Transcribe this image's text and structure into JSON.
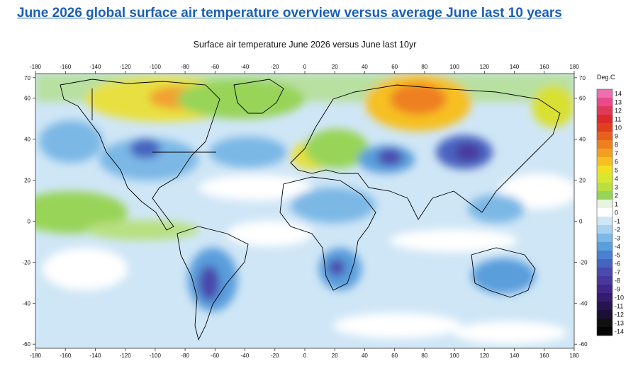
{
  "page_title": "June 2026 global surface air temperature overview versus average June last 10 years",
  "map_title": "Surface air temperature June 2026 versus June last 10yr",
  "x_ticks": [
    "-180",
    "-160",
    "-140",
    "-120",
    "-100",
    "-80",
    "-60",
    "-40",
    "-20",
    "0",
    "20",
    "40",
    "60",
    "80",
    "100",
    "120",
    "140",
    "160",
    "180"
  ],
  "y_ticks": [
    "70",
    "60",
    "40",
    "20",
    "0",
    "-20",
    "-40",
    "-60"
  ],
  "colorbar": {
    "title": "Deg.C",
    "labels": [
      "14",
      "13",
      "12",
      "11",
      "10",
      "9",
      "8",
      "7",
      "6",
      "5",
      "4",
      "3",
      "2",
      "1",
      "0",
      "-1",
      "-2",
      "-3",
      "-4",
      "-5",
      "-6",
      "-7",
      "-8",
      "-9",
      "-10",
      "-11",
      "-12",
      "-13",
      "-14"
    ],
    "colors": [
      "#ee6fb0",
      "#e84a8a",
      "#e03a5a",
      "#dc2a2a",
      "#e04020",
      "#e86020",
      "#ee8020",
      "#f2a020",
      "#f6c020",
      "#f2e020",
      "#d8e830",
      "#b8e040",
      "#98d458",
      "#e8f4e0",
      "#ffffff",
      "#cfe6f6",
      "#a8d2f0",
      "#7cb8e6",
      "#5a9edc",
      "#4a80d0",
      "#4464c0",
      "#4a4aae",
      "#48389c",
      "#402888",
      "#341c70",
      "#26144f",
      "#1a0f36",
      "#101010",
      "#050505"
    ]
  },
  "anomaly_regions": [
    {
      "name": "northern canada warm",
      "lon": -100,
      "lat": 67,
      "value": 4
    },
    {
      "name": "hudson bay warm",
      "lon": -93,
      "lat": 65,
      "value": 6
    },
    {
      "name": "western siberia warm",
      "lon": 75,
      "lat": 64,
      "value": 7
    },
    {
      "name": "central europe warm",
      "lon": 5,
      "lat": 47,
      "value": 4
    },
    {
      "name": "central asia cold",
      "lon": 55,
      "lat": 45,
      "value": -4
    },
    {
      "name": "mongolia cold",
      "lon": 110,
      "lat": 48,
      "value": -6
    },
    {
      "name": "north america cold",
      "lon": -100,
      "lat": 45,
      "value": -3
    },
    {
      "name": "south america cold",
      "lon": -60,
      "lat": -27,
      "value": -4
    },
    {
      "name": "southern africa cold",
      "lon": 25,
      "lat": -22,
      "value": -4
    },
    {
      "name": "australia cold",
      "lon": 130,
      "lat": -25,
      "value": -3
    },
    {
      "name": "pacific tropical warm",
      "lon": -120,
      "lat": 0,
      "value": 2
    },
    {
      "name": "north atlantic warm",
      "lon": -30,
      "lat": 58,
      "value": 2
    }
  ]
}
